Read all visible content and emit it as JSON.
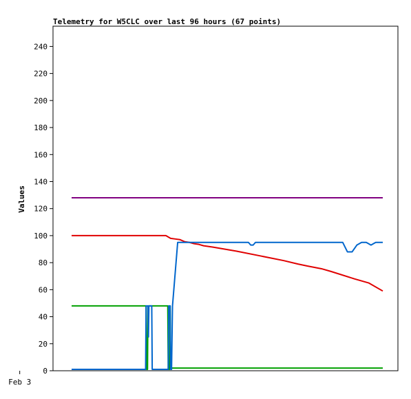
{
  "chart_data": {
    "type": "line",
    "title": "Telemetry for W5CLC over last 96 hours (67 points)",
    "xlabel": "",
    "ylabel": "Values",
    "ylim": [
      0,
      255
    ],
    "xlim": [
      0,
      66
    ],
    "x_ticks": [
      {
        "x": -11,
        "label": "Feb 3"
      }
    ],
    "y_ticks": [
      0,
      20,
      40,
      60,
      80,
      100,
      120,
      140,
      160,
      180,
      200,
      220,
      240
    ],
    "grid": false,
    "legend": "none",
    "series": [
      {
        "color": "#800080",
        "points": [
          [
            0,
            128
          ],
          [
            66,
            128
          ]
        ]
      },
      {
        "color": "#e00000",
        "points": [
          [
            0,
            100
          ],
          [
            5,
            100
          ],
          [
            10,
            100
          ],
          [
            15,
            100
          ],
          [
            20,
            100
          ],
          [
            21,
            98
          ],
          [
            22,
            97.5
          ],
          [
            23,
            97
          ],
          [
            24,
            95.5
          ],
          [
            25,
            95
          ],
          [
            26,
            94
          ],
          [
            27,
            93.5
          ],
          [
            28,
            92.5
          ],
          [
            30,
            91.5
          ],
          [
            35,
            88.5
          ],
          [
            40,
            85
          ],
          [
            45,
            81.5
          ],
          [
            48,
            79
          ],
          [
            50,
            77.5
          ],
          [
            53,
            75.5
          ],
          [
            55,
            73.5
          ],
          [
            60,
            68
          ],
          [
            63,
            65
          ],
          [
            66,
            59
          ]
        ]
      },
      {
        "color": "#00a000",
        "points": [
          [
            0,
            48
          ],
          [
            15.8,
            48
          ],
          [
            15.9,
            1
          ],
          [
            16.1,
            1
          ],
          [
            16.2,
            48
          ],
          [
            20.4,
            48
          ],
          [
            20.5,
            1
          ],
          [
            20.8,
            1
          ],
          [
            20.9,
            48
          ],
          [
            21.0,
            2
          ],
          [
            66,
            2
          ]
        ]
      },
      {
        "color": "#0066cc",
        "points": [
          [
            0,
            1
          ],
          [
            15.7,
            1
          ],
          [
            15.8,
            48
          ],
          [
            16.2,
            48
          ],
          [
            16.3,
            25
          ],
          [
            16.4,
            48
          ],
          [
            17.0,
            48
          ],
          [
            17.1,
            1
          ],
          [
            20.5,
            1
          ],
          [
            20.6,
            48
          ],
          [
            20.9,
            48
          ],
          [
            21.0,
            1
          ],
          [
            21.2,
            1
          ],
          [
            21.4,
            48
          ],
          [
            22.5,
            95
          ],
          [
            37.5,
            95
          ],
          [
            38,
            93
          ],
          [
            38.5,
            93
          ],
          [
            39,
            95
          ],
          [
            57.5,
            95
          ],
          [
            58.5,
            88
          ],
          [
            59.5,
            88
          ],
          [
            60.5,
            93
          ],
          [
            61.5,
            95
          ],
          [
            62.5,
            95
          ],
          [
            63.5,
            93
          ],
          [
            64.5,
            95
          ],
          [
            66,
            95
          ]
        ]
      }
    ]
  }
}
